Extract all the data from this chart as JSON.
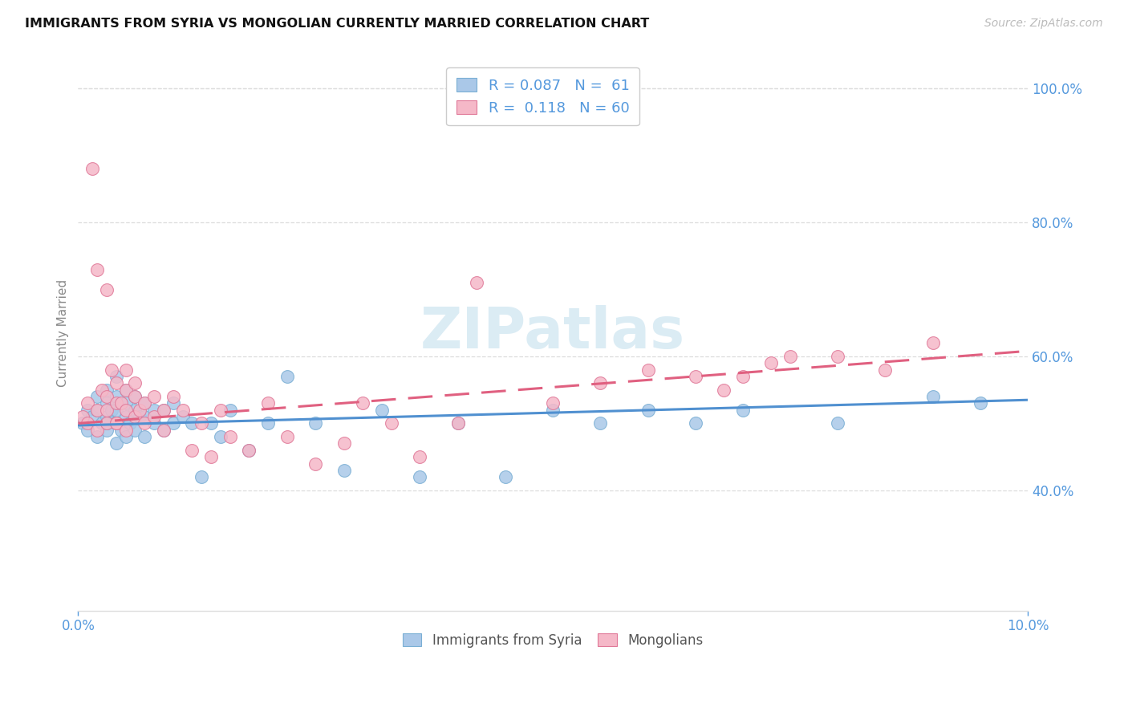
{
  "title": "IMMIGRANTS FROM SYRIA VS MONGOLIAN CURRENTLY MARRIED CORRELATION CHART",
  "source": "Source: ZipAtlas.com",
  "ylabel": "Currently Married",
  "legend_syria_r": "0.087",
  "legend_syria_n": "61",
  "legend_mongolia_r": "0.118",
  "legend_mongolia_n": "60",
  "xlim": [
    0.0,
    0.1
  ],
  "ylim": [
    0.22,
    1.05
  ],
  "yticks": [
    0.4,
    0.6,
    0.8,
    1.0
  ],
  "color_syria_fill": "#aac8e8",
  "color_syria_edge": "#7aafd4",
  "color_mongolia_fill": "#f5b8c8",
  "color_mongolia_edge": "#e07898",
  "color_trend_syria": "#5090d0",
  "color_trend_mongolia": "#e06080",
  "watermark_color": "#cce4f0",
  "grid_color": "#dddddd",
  "axis_color": "#aaaaaa",
  "tick_color": "#5599dd",
  "syria_x": [
    0.0005,
    0.001,
    0.001,
    0.0015,
    0.002,
    0.002,
    0.002,
    0.0025,
    0.003,
    0.003,
    0.003,
    0.003,
    0.003,
    0.0035,
    0.004,
    0.004,
    0.004,
    0.004,
    0.004,
    0.0045,
    0.005,
    0.005,
    0.005,
    0.005,
    0.0055,
    0.006,
    0.006,
    0.006,
    0.0065,
    0.007,
    0.007,
    0.007,
    0.008,
    0.008,
    0.009,
    0.009,
    0.01,
    0.01,
    0.011,
    0.012,
    0.013,
    0.014,
    0.015,
    0.016,
    0.018,
    0.02,
    0.022,
    0.025,
    0.028,
    0.032,
    0.036,
    0.04,
    0.045,
    0.05,
    0.055,
    0.06,
    0.065,
    0.07,
    0.08,
    0.09,
    0.095
  ],
  "syria_y": [
    0.5,
    0.49,
    0.52,
    0.51,
    0.48,
    0.52,
    0.54,
    0.5,
    0.49,
    0.51,
    0.53,
    0.55,
    0.5,
    0.52,
    0.47,
    0.5,
    0.52,
    0.54,
    0.57,
    0.49,
    0.48,
    0.51,
    0.53,
    0.55,
    0.5,
    0.49,
    0.52,
    0.54,
    0.51,
    0.48,
    0.51,
    0.53,
    0.5,
    0.52,
    0.49,
    0.52,
    0.5,
    0.53,
    0.51,
    0.5,
    0.42,
    0.5,
    0.48,
    0.52,
    0.46,
    0.5,
    0.57,
    0.5,
    0.43,
    0.52,
    0.42,
    0.5,
    0.42,
    0.52,
    0.5,
    0.52,
    0.5,
    0.52,
    0.5,
    0.54,
    0.53
  ],
  "mongolia_x": [
    0.0005,
    0.001,
    0.001,
    0.0015,
    0.002,
    0.002,
    0.002,
    0.0025,
    0.003,
    0.003,
    0.003,
    0.003,
    0.0035,
    0.004,
    0.004,
    0.004,
    0.004,
    0.0045,
    0.005,
    0.005,
    0.005,
    0.005,
    0.006,
    0.006,
    0.006,
    0.0065,
    0.007,
    0.007,
    0.008,
    0.008,
    0.009,
    0.009,
    0.01,
    0.011,
    0.012,
    0.013,
    0.014,
    0.015,
    0.016,
    0.018,
    0.02,
    0.022,
    0.025,
    0.028,
    0.03,
    0.033,
    0.036,
    0.04,
    0.042,
    0.05,
    0.055,
    0.06,
    0.065,
    0.068,
    0.07,
    0.073,
    0.075,
    0.08,
    0.085,
    0.09
  ],
  "mongolia_y": [
    0.51,
    0.5,
    0.53,
    0.88,
    0.49,
    0.52,
    0.73,
    0.55,
    0.5,
    0.52,
    0.7,
    0.54,
    0.58,
    0.5,
    0.53,
    0.56,
    0.5,
    0.53,
    0.49,
    0.52,
    0.55,
    0.58,
    0.51,
    0.54,
    0.56,
    0.52,
    0.5,
    0.53,
    0.51,
    0.54,
    0.49,
    0.52,
    0.54,
    0.52,
    0.46,
    0.5,
    0.45,
    0.52,
    0.48,
    0.46,
    0.53,
    0.48,
    0.44,
    0.47,
    0.53,
    0.5,
    0.45,
    0.5,
    0.71,
    0.53,
    0.56,
    0.58,
    0.57,
    0.55,
    0.57,
    0.59,
    0.6,
    0.6,
    0.58,
    0.62
  ],
  "trend_syria_x0": 0.0,
  "trend_syria_x1": 0.1,
  "trend_syria_y0": 0.497,
  "trend_syria_y1": 0.535,
  "trend_mongolia_x0": 0.0,
  "trend_mongolia_x1": 0.1,
  "trend_mongolia_y0": 0.5,
  "trend_mongolia_y1": 0.608
}
